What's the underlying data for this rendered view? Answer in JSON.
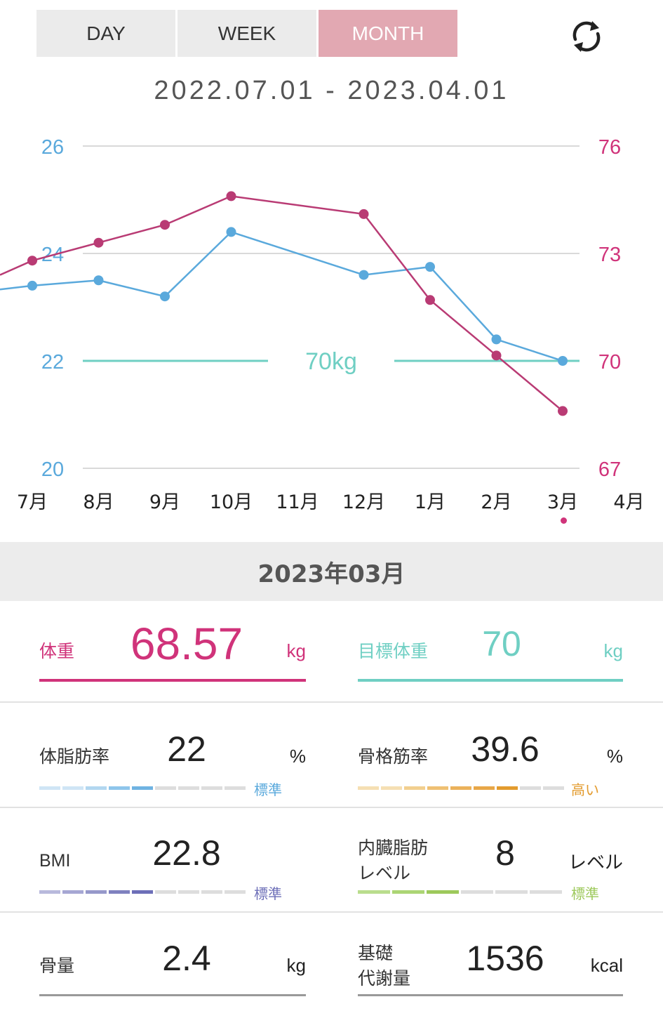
{
  "tabs": [
    {
      "label": "DAY",
      "active": false
    },
    {
      "label": "WEEK",
      "active": false
    },
    {
      "label": "MONTH",
      "active": true
    }
  ],
  "date_range": "2022.07.01 - 2023.04.01",
  "chart_data": {
    "type": "line",
    "x": [
      "7月",
      "8月",
      "9月",
      "10月",
      "11月",
      "12月",
      "1月",
      "2月",
      "3月",
      "4月"
    ],
    "left_axis": {
      "ticks": [
        26,
        24,
        22,
        20
      ],
      "range": [
        20,
        26
      ],
      "color": "#5aa9dc"
    },
    "right_axis": {
      "ticks": [
        76,
        73,
        70,
        67
      ],
      "range": [
        67,
        76
      ],
      "color": "#d0337a"
    },
    "series": [
      {
        "axis": "left",
        "color": "#5aa9dc",
        "values": [
          23.4,
          23.5,
          23.2,
          24.4,
          null,
          23.6,
          23.75,
          22.4,
          22.0,
          null
        ],
        "lead_in": 23.33
      },
      {
        "axis": "right",
        "color": "#b93b74",
        "values": [
          72.8,
          73.3,
          73.8,
          74.6,
          null,
          74.1,
          71.7,
          70.15,
          68.6,
          null
        ],
        "lead_in": 72.4
      }
    ],
    "target_line": {
      "value": 70,
      "label": "70kg",
      "color": "#6fcfc3"
    },
    "grid": true
  },
  "selected_month": "2023年03月",
  "metrics": {
    "weight": {
      "label": "体重",
      "value": "68.57",
      "unit": "kg",
      "color": "#d0337a"
    },
    "target_weight": {
      "label": "目標体重",
      "value": "70",
      "unit": "kg",
      "color": "#6fcfc3"
    },
    "body_fat": {
      "label": "体脂肪率",
      "value": "22",
      "unit": "%",
      "status": "標準",
      "status_color": "#5aa9dc",
      "level_fill": 5,
      "level_total": 9
    },
    "skeletal_muscle": {
      "label": "骨格筋率",
      "value": "39.6",
      "unit": "%",
      "status": "高い",
      "status_color": "#e39b2e",
      "level_fill": 7,
      "level_total": 9
    },
    "bmi": {
      "label": "BMI",
      "value": "22.8",
      "unit": "",
      "status": "標準",
      "status_color": "#6d6fb8",
      "level_fill": 5,
      "level_total": 9
    },
    "visceral_fat": {
      "label_line1": "内臓脂肪",
      "label_line2": "レベル",
      "value": "8",
      "unit": "レベル",
      "status": "標準",
      "status_color": "#9dc95b",
      "level_fill": 3,
      "level_total": 6
    },
    "bone_mass": {
      "label": "骨量",
      "value": "2.4",
      "unit": "kg"
    },
    "bmr": {
      "label_line1": "基礎",
      "label_line2": "代謝量",
      "value": "1536",
      "unit": "kcal"
    }
  }
}
